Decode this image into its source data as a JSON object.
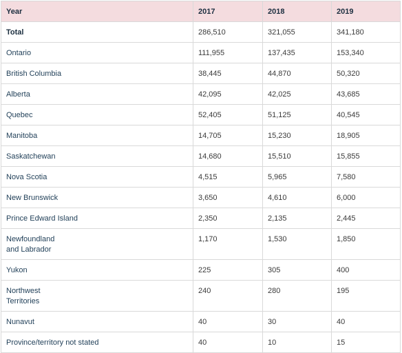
{
  "table": {
    "headers": [
      "Year",
      "2017",
      "2018",
      "2019"
    ],
    "rows": [
      {
        "name": "Total",
        "values": [
          "286,510",
          "321,055",
          "341,180"
        ]
      },
      {
        "name": "Ontario",
        "values": [
          "111,955",
          "137,435",
          "153,340"
        ]
      },
      {
        "name": "British Columbia",
        "values": [
          "38,445",
          "44,870",
          "50,320"
        ]
      },
      {
        "name": "Alberta",
        "values": [
          "42,095",
          "42,025",
          "43,685"
        ]
      },
      {
        "name": "Quebec",
        "values": [
          "52,405",
          "51,125",
          "40,545"
        ]
      },
      {
        "name": "Manitoba",
        "values": [
          "14,705",
          "15,230",
          "18,905"
        ]
      },
      {
        "name": "Saskatchewan",
        "values": [
          "14,680",
          "15,510",
          "15,855"
        ]
      },
      {
        "name": "Nova Scotia",
        "values": [
          "4,515",
          "5,965",
          "7,580"
        ]
      },
      {
        "name": "New Brunswick",
        "values": [
          "3,650",
          "4,610",
          "6,000"
        ]
      },
      {
        "name": "Prince Edward Island",
        "values": [
          "2,350",
          "2,135",
          "2,445"
        ]
      },
      {
        "name": "Newfoundland\nand Labrador",
        "values": [
          "1,170",
          "1,530",
          "1,850"
        ]
      },
      {
        "name": "Yukon",
        "values": [
          "225",
          "305",
          "400"
        ]
      },
      {
        "name": "Northwest\nTerritories",
        "values": [
          "240",
          "280",
          "195"
        ]
      },
      {
        "name": "Nunavut",
        "values": [
          "40",
          "30",
          "40"
        ]
      },
      {
        "name": "Province/territory not stated",
        "values": [
          "40",
          "10",
          "15"
        ]
      }
    ]
  },
  "colors": {
    "header_background": "#f4dcdf",
    "border": "#d9d9d9",
    "label_text": "#1f3e57"
  }
}
